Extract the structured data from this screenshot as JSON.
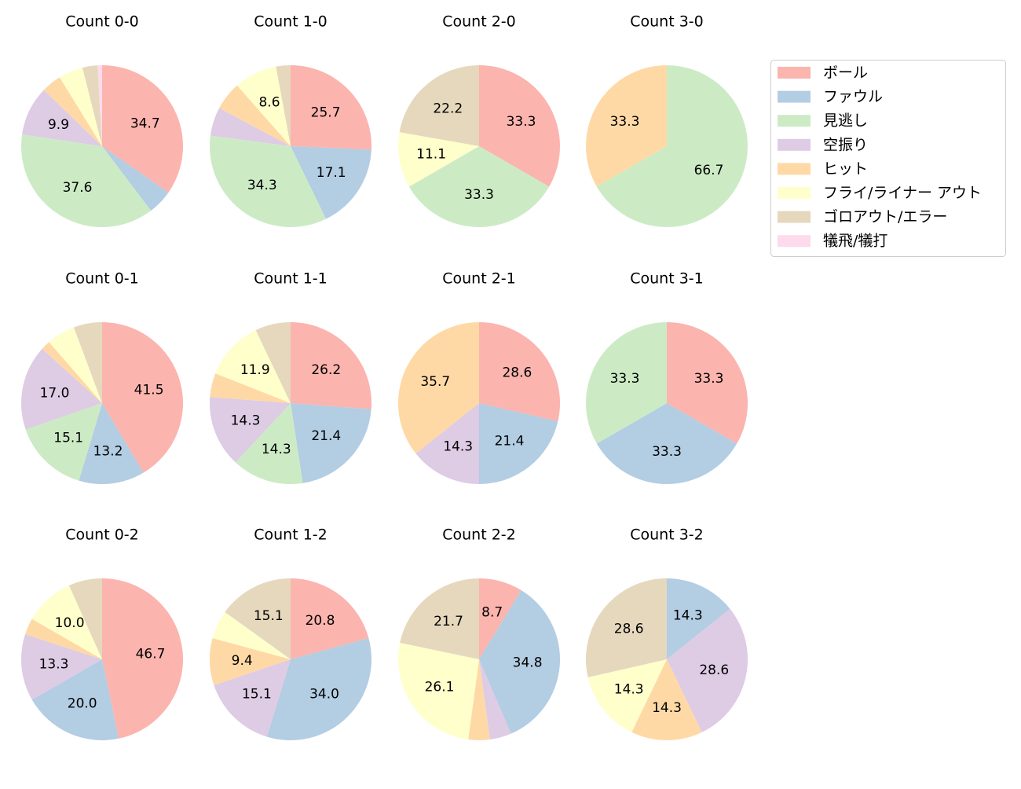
{
  "legend": {
    "position": "top-right",
    "items": [
      {
        "label": "ボール",
        "color": "#fbb4ae"
      },
      {
        "label": "ファウル",
        "color": "#b3cde3"
      },
      {
        "label": "見逃し",
        "color": "#ccebc5"
      },
      {
        "label": "空振り",
        "color": "#decbe4"
      },
      {
        "label": "ヒット",
        "color": "#fed9a6"
      },
      {
        "label": "フライ/ライナー アウト",
        "color": "#ffffcc"
      },
      {
        "label": "ゴロアウト/エラー",
        "color": "#e5d8bd"
      },
      {
        "label": "犠飛/犠打",
        "color": "#fddaec"
      }
    ]
  },
  "chart_data": [
    {
      "type": "pie",
      "title": "Count 0-0",
      "categories": [
        "ボール",
        "ファウル",
        "見逃し",
        "空振り",
        "ヒット",
        "フライ/ライナー アウト",
        "ゴロアウト/エラー",
        "犠飛/犠打"
      ],
      "values": [
        34.7,
        5.0,
        37.6,
        9.9,
        4.0,
        4.9,
        3.0,
        0.9
      ],
      "labels": [
        "34.7",
        "",
        "37.6",
        "9.9",
        "",
        "",
        "",
        ""
      ]
    },
    {
      "type": "pie",
      "title": "Count 1-0",
      "categories": [
        "ボール",
        "ファウル",
        "見逃し",
        "空振り",
        "ヒット",
        "フライ/ライナー アウト",
        "ゴロアウト/エラー",
        "犠飛/犠打"
      ],
      "values": [
        25.7,
        17.1,
        34.3,
        5.7,
        5.7,
        8.6,
        2.9,
        0
      ],
      "labels": [
        "25.7",
        "17.1",
        "34.3",
        "",
        "",
        "8.6",
        "",
        ""
      ]
    },
    {
      "type": "pie",
      "title": "Count 2-0",
      "categories": [
        "ボール",
        "ファウル",
        "見逃し",
        "空振り",
        "ヒット",
        "フライ/ライナー アウト",
        "ゴロアウト/エラー",
        "犠飛/犠打"
      ],
      "values": [
        33.3,
        0,
        33.3,
        0,
        0,
        11.1,
        22.2,
        0
      ],
      "labels": [
        "33.3",
        "",
        "33.3",
        "",
        "",
        "11.1",
        "22.2",
        ""
      ]
    },
    {
      "type": "pie",
      "title": "Count 3-0",
      "categories": [
        "ボール",
        "ファウル",
        "見逃し",
        "空振り",
        "ヒット",
        "フライ/ライナー アウト",
        "ゴロアウト/エラー",
        "犠飛/犠打"
      ],
      "values": [
        0,
        0,
        66.7,
        0,
        33.3,
        0,
        0,
        0
      ],
      "labels": [
        "",
        "",
        "66.7",
        "",
        "33.3",
        "",
        "",
        ""
      ]
    },
    {
      "type": "pie",
      "title": "Count 0-1",
      "categories": [
        "ボール",
        "ファウル",
        "見逃し",
        "空振り",
        "ヒット",
        "フライ/ライナー アウト",
        "ゴロアウト/エラー",
        "犠飛/犠打"
      ],
      "values": [
        41.5,
        13.2,
        15.1,
        17.0,
        1.9,
        5.7,
        5.7,
        0
      ],
      "labels": [
        "41.5",
        "13.2",
        "15.1",
        "17.0",
        "",
        "",
        "",
        ""
      ]
    },
    {
      "type": "pie",
      "title": "Count 1-1",
      "categories": [
        "ボール",
        "ファウル",
        "見逃し",
        "空振り",
        "ヒット",
        "フライ/ライナー アウト",
        "ゴロアウト/エラー",
        "犠飛/犠打"
      ],
      "values": [
        26.2,
        21.4,
        14.3,
        14.3,
        4.8,
        11.9,
        7.1,
        0
      ],
      "labels": [
        "26.2",
        "21.4",
        "14.3",
        "14.3",
        "",
        "11.9",
        "",
        ""
      ]
    },
    {
      "type": "pie",
      "title": "Count 2-1",
      "categories": [
        "ボール",
        "ファウル",
        "見逃し",
        "空振り",
        "ヒット",
        "フライ/ライナー アウト",
        "ゴロアウト/エラー",
        "犠飛/犠打"
      ],
      "values": [
        28.6,
        21.4,
        0,
        14.3,
        35.7,
        0,
        0,
        0
      ],
      "labels": [
        "28.6",
        "21.4",
        "",
        "14.3",
        "35.7",
        "",
        "",
        ""
      ]
    },
    {
      "type": "pie",
      "title": "Count 3-1",
      "categories": [
        "ボール",
        "ファウル",
        "見逃し",
        "空振り",
        "ヒット",
        "フライ/ライナー アウト",
        "ゴロアウト/エラー",
        "犠飛/犠打"
      ],
      "values": [
        33.3,
        33.3,
        33.3,
        0,
        0,
        0,
        0,
        0
      ],
      "labels": [
        "33.3",
        "33.3",
        "33.3",
        "",
        "",
        "",
        "",
        ""
      ]
    },
    {
      "type": "pie",
      "title": "Count 0-2",
      "categories": [
        "ボール",
        "ファウル",
        "見逃し",
        "空振り",
        "ヒット",
        "フライ/ライナー アウト",
        "ゴロアウト/エラー",
        "犠飛/犠打"
      ],
      "values": [
        46.7,
        20.0,
        0,
        13.3,
        3.3,
        10.0,
        6.7,
        0
      ],
      "labels": [
        "46.7",
        "20.0",
        "",
        "13.3",
        "",
        "10.0",
        "",
        ""
      ]
    },
    {
      "type": "pie",
      "title": "Count 1-2",
      "categories": [
        "ボール",
        "ファウル",
        "見逃し",
        "空振り",
        "ヒット",
        "フライ/ライナー アウト",
        "ゴロアウト/エラー",
        "犠飛/犠打"
      ],
      "values": [
        20.8,
        34.0,
        0,
        15.1,
        9.4,
        5.7,
        15.1,
        0
      ],
      "labels": [
        "20.8",
        "34.0",
        "",
        "15.1",
        "9.4",
        "",
        "15.1",
        ""
      ]
    },
    {
      "type": "pie",
      "title": "Count 2-2",
      "categories": [
        "ボール",
        "ファウル",
        "見逃し",
        "空振り",
        "ヒット",
        "フライ/ライナー アウト",
        "ゴロアウト/エラー",
        "犠飛/犠打"
      ],
      "values": [
        8.7,
        34.8,
        0,
        4.3,
        4.3,
        26.1,
        21.7,
        0
      ],
      "labels": [
        "8.7",
        "34.8",
        "",
        "",
        "",
        "26.1",
        "21.7",
        ""
      ]
    },
    {
      "type": "pie",
      "title": "Count 3-2",
      "categories": [
        "ボール",
        "ファウル",
        "見逃し",
        "空振り",
        "ヒット",
        "フライ/ライナー アウト",
        "ゴロアウト/エラー",
        "犠飛/犠打"
      ],
      "values": [
        0,
        14.3,
        0,
        28.6,
        14.3,
        14.3,
        28.6,
        0
      ],
      "labels": [
        "",
        "14.3",
        "",
        "28.6",
        "14.3",
        "14.3",
        "28.6",
        ""
      ]
    }
  ]
}
